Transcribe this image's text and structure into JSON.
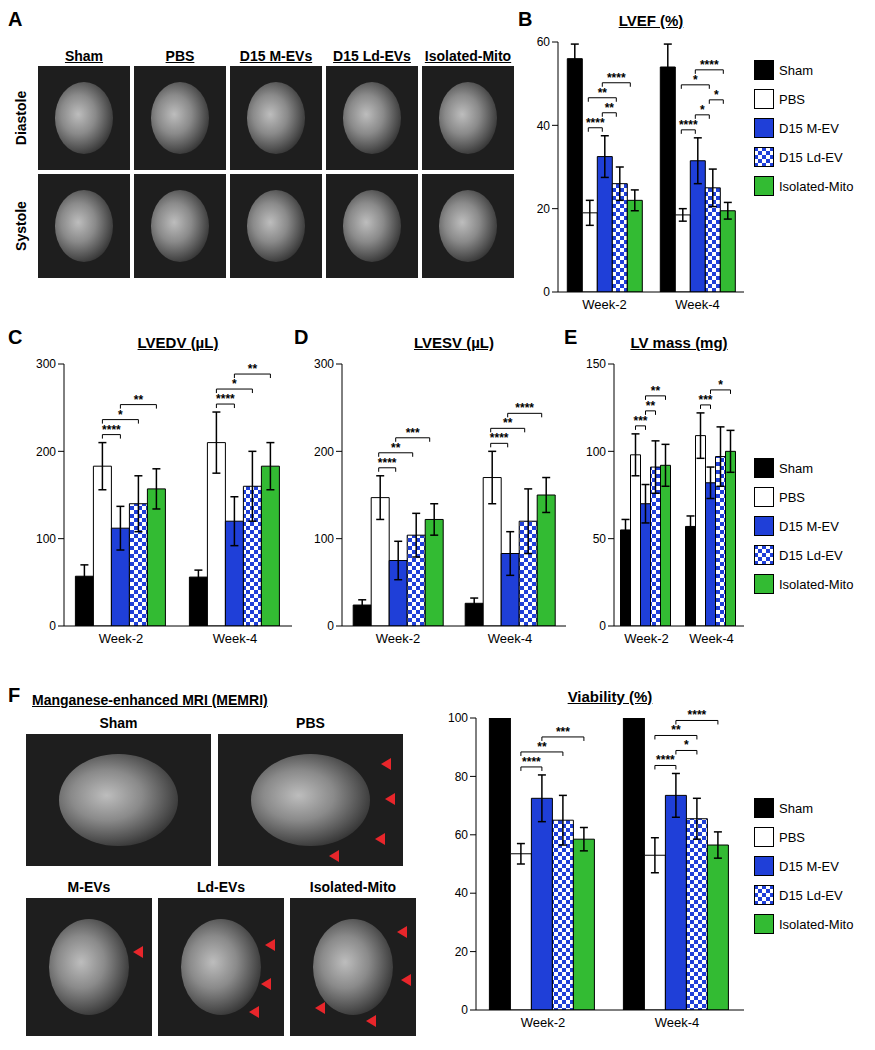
{
  "chart_data": [
    {
      "panel": "B",
      "type": "bar",
      "title": "LVEF (%)",
      "categories": [
        "Week-2",
        "Week-4"
      ],
      "ylim": [
        0,
        60
      ],
      "yticks": [
        0,
        20,
        40,
        60
      ],
      "legend": "right",
      "series": [
        {
          "name": "Sham",
          "color": "#000000",
          "values": [
            56,
            54
          ],
          "errors": [
            3.5,
            5.5
          ]
        },
        {
          "name": "PBS",
          "color": "#ffffff",
          "values": [
            19,
            18.5
          ],
          "errors": [
            3,
            1.5
          ]
        },
        {
          "name": "D15 M-EV",
          "color": "#1f3fd8",
          "values": [
            32.5,
            31.5
          ],
          "errors": [
            5,
            5.5
          ]
        },
        {
          "name": "D15 Ld-EV",
          "color": "#1f3fd8",
          "values": [
            26,
            25
          ],
          "errors": [
            4,
            4.5
          ]
        },
        {
          "name": "Isolated-Mito",
          "color": "#33bb33",
          "values": [
            22,
            19.5
          ],
          "errors": [
            2.5,
            2
          ]
        }
      ],
      "significance": [
        {
          "category": "Week-2",
          "from": "PBS",
          "to": "D15 M-EV",
          "label": "****"
        },
        {
          "category": "Week-2",
          "from": "PBS",
          "to": "D15 Ld-EV",
          "label": "**"
        },
        {
          "category": "Week-2",
          "from": "D15 M-EV",
          "to": "D15 Ld-EV",
          "label": "**"
        },
        {
          "category": "Week-2",
          "from": "D15 M-EV",
          "to": "Isolated-Mito",
          "label": "****"
        },
        {
          "category": "Week-4",
          "from": "PBS",
          "to": "D15 M-EV",
          "label": "****"
        },
        {
          "category": "Week-4",
          "from": "PBS",
          "to": "D15 Ld-EV",
          "label": "*"
        },
        {
          "category": "Week-4",
          "from": "D15 M-EV",
          "to": "D15 Ld-EV",
          "label": "*"
        },
        {
          "category": "Week-4",
          "from": "D15 M-EV",
          "to": "Isolated-Mito",
          "label": "****"
        },
        {
          "category": "Week-4",
          "from": "D15 Ld-EV",
          "to": "Isolated-Mito",
          "label": "*"
        }
      ]
    },
    {
      "panel": "C",
      "type": "bar",
      "title": "LVEDV (µL)",
      "categories": [
        "Week-2",
        "Week-4"
      ],
      "ylim": [
        0,
        300
      ],
      "yticks": [
        0,
        100,
        200,
        300
      ],
      "series": [
        {
          "name": "Sham",
          "color": "#000000",
          "values": [
            57,
            56
          ],
          "errors": [
            13,
            8
          ]
        },
        {
          "name": "PBS",
          "color": "#ffffff",
          "values": [
            183,
            210
          ],
          "errors": [
            27,
            35
          ]
        },
        {
          "name": "D15 M-EV",
          "color": "#1f3fd8",
          "values": [
            112,
            120
          ],
          "errors": [
            25,
            28
          ]
        },
        {
          "name": "D15 Ld-EV",
          "color": "#1f3fd8",
          "values": [
            140,
            160
          ],
          "errors": [
            32,
            40
          ]
        },
        {
          "name": "Isolated-Mito",
          "color": "#33bb33",
          "values": [
            157,
            183
          ],
          "errors": [
            23,
            27
          ]
        }
      ],
      "significance": [
        {
          "category": "Week-2",
          "from": "PBS",
          "to": "D15 M-EV",
          "label": "****"
        },
        {
          "category": "Week-2",
          "from": "PBS",
          "to": "D15 Ld-EV",
          "label": "*"
        },
        {
          "category": "Week-2",
          "from": "D15 M-EV",
          "to": "Isolated-Mito",
          "label": "**"
        },
        {
          "category": "Week-4",
          "from": "PBS",
          "to": "D15 M-EV",
          "label": "****"
        },
        {
          "category": "Week-4",
          "from": "PBS",
          "to": "D15 Ld-EV",
          "label": "*"
        },
        {
          "category": "Week-4",
          "from": "D15 M-EV",
          "to": "Isolated-Mito",
          "label": "**"
        }
      ]
    },
    {
      "panel": "D",
      "type": "bar",
      "title": "LVESV (µL)",
      "categories": [
        "Week-2",
        "Week-4"
      ],
      "ylim": [
        0,
        300
      ],
      "yticks": [
        0,
        100,
        200,
        300
      ],
      "series": [
        {
          "name": "Sham",
          "color": "#000000",
          "values": [
            24,
            26
          ],
          "errors": [
            6,
            6
          ]
        },
        {
          "name": "PBS",
          "color": "#ffffff",
          "values": [
            147,
            170
          ],
          "errors": [
            25,
            30
          ]
        },
        {
          "name": "D15 M-EV",
          "color": "#1f3fd8",
          "values": [
            75,
            83
          ],
          "errors": [
            22,
            25
          ]
        },
        {
          "name": "D15 Ld-EV",
          "color": "#1f3fd8",
          "values": [
            104,
            120
          ],
          "errors": [
            25,
            37
          ]
        },
        {
          "name": "Isolated-Mito",
          "color": "#33bb33",
          "values": [
            122,
            150
          ],
          "errors": [
            18,
            20
          ]
        }
      ],
      "significance": [
        {
          "category": "Week-2",
          "from": "PBS",
          "to": "D15 M-EV",
          "label": "****"
        },
        {
          "category": "Week-2",
          "from": "PBS",
          "to": "D15 Ld-EV",
          "label": "**"
        },
        {
          "category": "Week-2",
          "from": "D15 M-EV",
          "to": "Isolated-Mito",
          "label": "***"
        },
        {
          "category": "Week-4",
          "from": "PBS",
          "to": "D15 M-EV",
          "label": "****"
        },
        {
          "category": "Week-4",
          "from": "PBS",
          "to": "D15 Ld-EV",
          "label": "**"
        },
        {
          "category": "Week-4",
          "from": "D15 M-EV",
          "to": "Isolated-Mito",
          "label": "****"
        }
      ]
    },
    {
      "panel": "E",
      "type": "bar",
      "title": "LV mass (mg)",
      "categories": [
        "Week-2",
        "Week-4"
      ],
      "ylim": [
        0,
        150
      ],
      "yticks": [
        0,
        50,
        100,
        150
      ],
      "legend": "right",
      "series": [
        {
          "name": "Sham",
          "color": "#000000",
          "values": [
            55,
            57
          ],
          "errors": [
            6,
            6
          ]
        },
        {
          "name": "PBS",
          "color": "#ffffff",
          "values": [
            98,
            109
          ],
          "errors": [
            12,
            13
          ]
        },
        {
          "name": "D15 M-EV",
          "color": "#1f3fd8",
          "values": [
            70,
            82
          ],
          "errors": [
            11,
            9
          ]
        },
        {
          "name": "D15 Ld-EV",
          "color": "#1f3fd8",
          "values": [
            91,
            97
          ],
          "errors": [
            15,
            17
          ]
        },
        {
          "name": "Isolated-Mito",
          "color": "#33bb33",
          "values": [
            92,
            100
          ],
          "errors": [
            12,
            12
          ]
        }
      ],
      "significance": [
        {
          "category": "Week-2",
          "from": "PBS",
          "to": "D15 M-EV",
          "label": "***"
        },
        {
          "category": "Week-2",
          "from": "D15 M-EV",
          "to": "D15 Ld-EV",
          "label": "**"
        },
        {
          "category": "Week-2",
          "from": "D15 M-EV",
          "to": "Isolated-Mito",
          "label": "**"
        },
        {
          "category": "Week-4",
          "from": "PBS",
          "to": "D15 M-EV",
          "label": "***"
        },
        {
          "category": "Week-4",
          "from": "D15 M-EV",
          "to": "Isolated-Mito",
          "label": "*"
        }
      ]
    },
    {
      "type": "bar",
      "title": "Viability (%)",
      "categories": [
        "Week-2",
        "Week-4"
      ],
      "ylim": [
        0,
        100
      ],
      "yticks": [
        0,
        20,
        40,
        60,
        80,
        100
      ],
      "legend": "right",
      "series": [
        {
          "name": "Sham",
          "color": "#000000",
          "values": [
            100,
            100
          ],
          "errors": [
            0,
            0
          ]
        },
        {
          "name": "PBS",
          "color": "#ffffff",
          "values": [
            53.5,
            53
          ],
          "errors": [
            3.5,
            6
          ]
        },
        {
          "name": "D15 M-EV",
          "color": "#1f3fd8",
          "values": [
            72.5,
            73.5
          ],
          "errors": [
            8,
            7.5
          ]
        },
        {
          "name": "D15 Ld-EV",
          "color": "#1f3fd8",
          "values": [
            65,
            65.5
          ],
          "errors": [
            8.5,
            7
          ]
        },
        {
          "name": "Isolated-Mito",
          "color": "#33bb33",
          "values": [
            58.5,
            56.5
          ],
          "errors": [
            4,
            4.5
          ]
        }
      ],
      "significance": [
        {
          "category": "Week-2",
          "from": "PBS",
          "to": "D15 M-EV",
          "label": "****"
        },
        {
          "category": "Week-2",
          "from": "PBS",
          "to": "D15 Ld-EV",
          "label": "**"
        },
        {
          "category": "Week-2",
          "from": "D15 M-EV",
          "to": "Isolated-Mito",
          "label": "***"
        },
        {
          "category": "Week-4",
          "from": "PBS",
          "to": "D15 M-EV",
          "label": "****"
        },
        {
          "category": "Week-4",
          "from": "PBS",
          "to": "D15 Ld-EV",
          "label": "**"
        },
        {
          "category": "Week-4",
          "from": "D15 M-EV",
          "to": "D15 Ld-EV",
          "label": "*"
        },
        {
          "category": "Week-4",
          "from": "D15 M-EV",
          "to": "Isolated-Mito",
          "label": "****"
        }
      ]
    }
  ],
  "image_panels": {
    "A": {
      "panel": "A",
      "columns": [
        "Sham",
        "PBS",
        "D15 M-EVs",
        "D15 Ld-EVs",
        "Isolated-Mito"
      ],
      "rows": [
        "Diastole",
        "Systole"
      ]
    },
    "F": {
      "panel": "F",
      "title": "Manganese-enhanced MRI (MEMRI)",
      "images": [
        "Sham",
        "PBS",
        "M-EVs",
        "Ld-EVs",
        "Isolated-Mito"
      ]
    }
  }
}
